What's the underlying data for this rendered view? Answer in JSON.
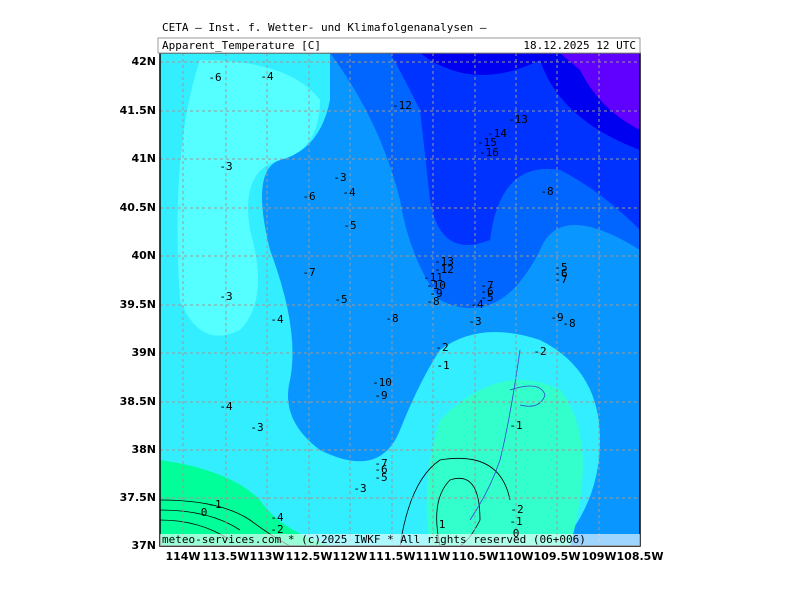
{
  "header": {
    "title": "CETA — Inst. f. Wetter- und Klimafolgenanalysen —",
    "parameter": "Apparent_Temperature [C]",
    "valid_time": "18.12.2025 12 UTC"
  },
  "axes": {
    "y_labels": [
      "42N",
      "41.5N",
      "41N",
      "40.5N",
      "40N",
      "39.5N",
      "39N",
      "38.5N",
      "38N",
      "37.5N",
      "37N"
    ],
    "x_labels": [
      "114W",
      "113.5W",
      "113W",
      "112.5W",
      "112W",
      "111.5W",
      "111W",
      "110.5W",
      "110W",
      "109.5W",
      "109W",
      "108.5W"
    ]
  },
  "footer": "meteo-services.com * (c)2025 IWKF * All rights reserved (06+006)",
  "contour_labels": [
    "-6",
    "-4",
    "-12",
    "-13",
    "-14",
    "-15",
    "-16",
    "-3",
    "-3",
    "-6",
    "-4",
    "-8",
    "-5",
    "-13",
    "-12",
    "-11",
    "-10",
    "-9",
    "-8",
    "-5",
    "-6",
    "-7",
    "-7",
    "-7",
    "-6",
    "-5",
    "-4",
    "-3",
    "-5",
    "-4",
    "-8",
    "-3",
    "-9",
    "-8",
    "-2",
    "-2",
    "-1",
    "-10",
    "-9",
    "-4",
    "-3",
    "-1",
    "-7",
    "-6",
    "-5",
    "-3",
    "-1",
    "0",
    "-2",
    "-4",
    "-1",
    "-2",
    "1",
    "0"
  ]
}
